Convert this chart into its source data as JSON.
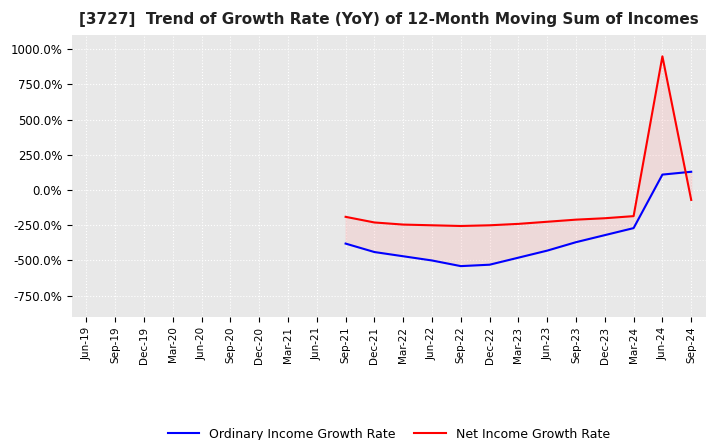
{
  "title": "[3727]  Trend of Growth Rate (YoY) of 12-Month Moving Sum of Incomes",
  "title_fontsize": 11,
  "background_color": "#ffffff",
  "plot_background_color": "#e8e8e8",
  "grid_color": "#ffffff",
  "legend_labels": [
    "Ordinary Income Growth Rate",
    "Net Income Growth Rate"
  ],
  "legend_colors": [
    "#0000ff",
    "#ff0000"
  ],
  "ylim": [
    -900,
    1100
  ],
  "yticks": [
    -750,
    -500,
    -250,
    0,
    250,
    500,
    750,
    1000
  ],
  "ytick_labels": [
    "-750.0%",
    "-500.0%",
    "-250.0%",
    "0.0%",
    "250.0%",
    "500.0%",
    "750.0%",
    "1000.0%"
  ],
  "x_tick_labels": [
    "Jun-19",
    "Sep-19",
    "Dec-19",
    "Mar-20",
    "Jun-20",
    "Sep-20",
    "Dec-20",
    "Mar-21",
    "Jun-21",
    "Sep-21",
    "Dec-21",
    "Mar-22",
    "Jun-22",
    "Sep-22",
    "Dec-22",
    "Mar-23",
    "Jun-23",
    "Sep-23",
    "Dec-23",
    "Mar-24",
    "Jun-24",
    "Sep-24"
  ],
  "ordinary_income_gr": [
    null,
    null,
    null,
    null,
    null,
    null,
    null,
    null,
    null,
    -380,
    -440,
    -470,
    -500,
    -540,
    -530,
    -480,
    -430,
    -370,
    -320,
    -270,
    110,
    130
  ],
  "net_income_gr": [
    null,
    null,
    null,
    null,
    null,
    null,
    null,
    null,
    null,
    -190,
    -230,
    -245,
    -250,
    -255,
    -250,
    -240,
    -225,
    -210,
    -200,
    -185,
    950,
    -70
  ]
}
